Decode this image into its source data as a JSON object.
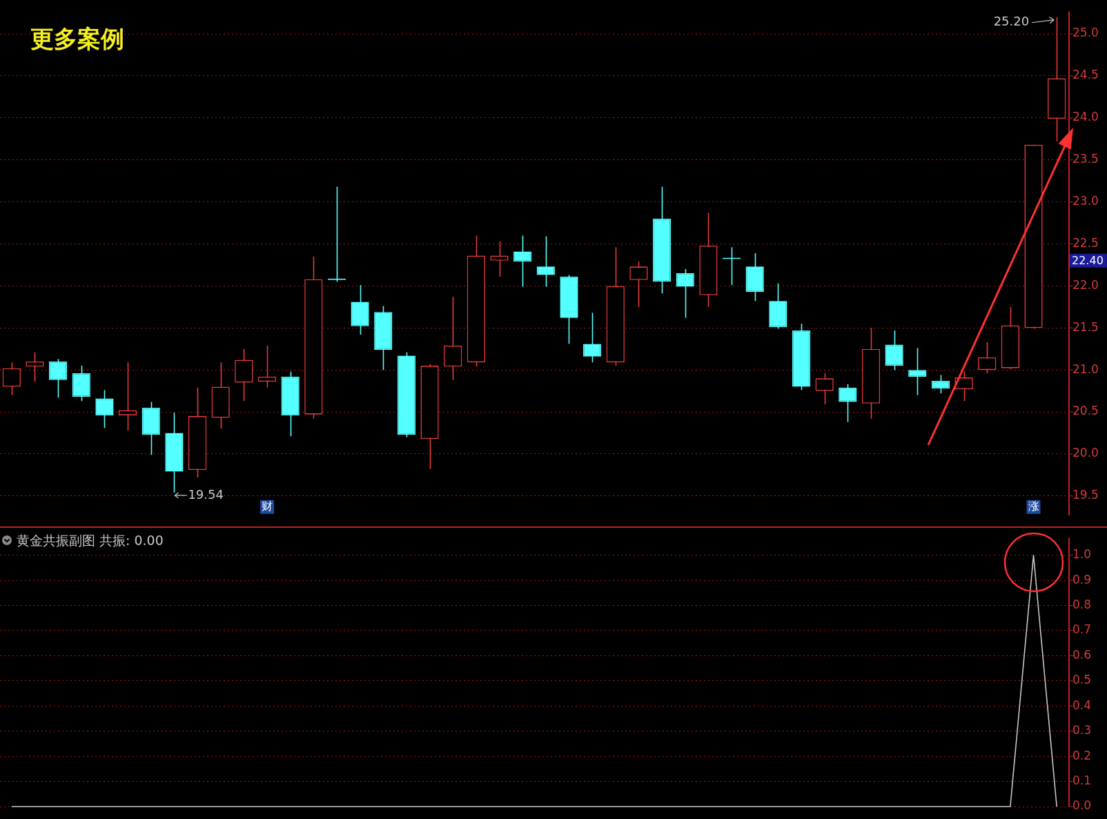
{
  "chart_data": [
    {
      "type": "candlestick",
      "title": "更多案例",
      "categories": [
        null,
        null,
        null,
        null,
        null,
        null,
        null,
        null,
        null,
        null,
        null,
        "财",
        null,
        null,
        null,
        null,
        null,
        null,
        null,
        null,
        null,
        null,
        null,
        null,
        null,
        null,
        null,
        null,
        null,
        null,
        null,
        null,
        null,
        null,
        null,
        null,
        null,
        null,
        null,
        null,
        null,
        null,
        null,
        null,
        "涨",
        null
      ],
      "ohlc": [
        [
          20.8,
          21.09,
          20.7,
          21.02
        ],
        [
          21.04,
          21.21,
          20.86,
          21.1
        ],
        [
          21.1,
          21.13,
          20.67,
          20.88
        ],
        [
          20.96,
          21.05,
          20.63,
          20.68
        ],
        [
          20.66,
          20.76,
          20.31,
          20.46
        ],
        [
          20.46,
          21.09,
          20.28,
          20.52
        ],
        [
          20.55,
          20.62,
          19.99,
          20.23
        ],
        [
          20.25,
          20.49,
          19.54,
          19.79
        ],
        [
          19.81,
          20.79,
          19.72,
          20.45
        ],
        [
          20.43,
          21.09,
          20.3,
          20.8
        ],
        [
          20.85,
          21.25,
          20.63,
          21.12
        ],
        [
          20.86,
          21.29,
          20.79,
          20.92
        ],
        [
          20.92,
          20.98,
          20.21,
          20.46
        ],
        [
          20.47,
          22.35,
          20.42,
          22.08
        ],
        [
          22.08,
          23.18,
          22.05,
          22.07
        ],
        [
          21.81,
          22.01,
          21.42,
          21.52
        ],
        [
          21.69,
          21.76,
          21.0,
          21.24
        ],
        [
          21.17,
          21.21,
          20.2,
          20.23
        ],
        [
          20.18,
          21.07,
          19.82,
          21.05
        ],
        [
          21.04,
          21.87,
          20.88,
          21.29
        ],
        [
          21.09,
          22.6,
          21.04,
          22.36
        ],
        [
          22.3,
          22.53,
          22.11,
          22.36
        ],
        [
          22.41,
          22.6,
          21.99,
          22.29
        ],
        [
          22.23,
          22.59,
          21.99,
          22.13
        ],
        [
          22.11,
          22.13,
          21.31,
          21.62
        ],
        [
          21.31,
          21.68,
          21.09,
          21.16
        ],
        [
          21.09,
          22.46,
          21.05,
          22.0
        ],
        [
          22.07,
          22.29,
          21.75,
          22.23
        ],
        [
          22.8,
          23.18,
          21.91,
          22.05
        ],
        [
          22.15,
          22.2,
          21.62,
          21.99
        ],
        [
          21.89,
          22.87,
          21.75,
          22.48
        ],
        [
          22.33,
          22.46,
          22.01,
          22.32
        ],
        [
          22.23,
          22.39,
          21.82,
          21.93
        ],
        [
          21.82,
          22.03,
          21.49,
          21.51
        ],
        [
          21.47,
          21.55,
          20.76,
          20.8
        ],
        [
          20.75,
          20.96,
          20.59,
          20.9
        ],
        [
          20.79,
          20.83,
          20.38,
          20.62
        ],
        [
          20.6,
          21.5,
          20.42,
          21.25
        ],
        [
          21.3,
          21.47,
          21.0,
          21.05
        ],
        [
          21.0,
          21.26,
          20.7,
          20.92
        ],
        [
          20.87,
          20.94,
          20.72,
          20.78
        ],
        [
          20.77,
          20.98,
          20.63,
          20.91
        ],
        [
          21.0,
          21.33,
          20.96,
          21.15
        ],
        [
          21.02,
          21.75,
          21.01,
          21.53
        ],
        [
          21.5,
          23.68,
          21.49,
          23.68
        ],
        [
          23.99,
          25.2,
          23.72,
          24.47
        ]
      ],
      "colors": [
        "#e8393a",
        "#e8393a",
        "#54ffff",
        "#54ffff",
        "#54ffff",
        "#e8393a",
        "#54ffff",
        "#54ffff",
        "#e8393a",
        "#e8393a",
        "#e8393a",
        "#e8393a",
        "#54ffff",
        "#e8393a",
        "#54ffff",
        "#54ffff",
        "#54ffff",
        "#54ffff",
        "#e8393a",
        "#e8393a",
        "#e8393a",
        "#e8393a",
        "#54ffff",
        "#54ffff",
        "#54ffff",
        "#54ffff",
        "#e8393a",
        "#e8393a",
        "#54ffff",
        "#54ffff",
        "#e8393a",
        "#54ffff",
        "#54ffff",
        "#54ffff",
        "#54ffff",
        "#e8393a",
        "#54ffff",
        "#e8393a",
        "#54ffff",
        "#54ffff",
        "#54ffff",
        "#e8393a",
        "#e8393a",
        "#e8393a",
        "#e8393a",
        "#e8393a"
      ],
      "ylim": [
        19.27,
        25.27
      ],
      "yticks": [
        {
          "value": 19.5,
          "label": "19.5"
        },
        {
          "value": 20,
          "label": "20.0"
        },
        {
          "value": 20.5,
          "label": "20.5"
        },
        {
          "value": 21,
          "label": "21.0"
        },
        {
          "value": 21.5,
          "label": "21.5"
        },
        {
          "value": 22,
          "label": "22.0"
        },
        {
          "value": 22.5,
          "label": "22.5"
        },
        {
          "value": 23,
          "label": "23.0"
        },
        {
          "value": 23.5,
          "label": "23.5"
        },
        {
          "value": 24,
          "label": "24.0"
        },
        {
          "value": 24.5,
          "label": "24.5"
        },
        {
          "value": 25,
          "label": "25.0"
        }
      ],
      "annotations": [
        "25.20",
        "19.54",
        "22.40"
      ],
      "grid": "y",
      "legend": false
    },
    {
      "type": "line",
      "title": "黄金共振副图 共振: 0.00",
      "categories": [
        null,
        null,
        null,
        null,
        null,
        null,
        null,
        null,
        null,
        null,
        null,
        null,
        null,
        null,
        null,
        null,
        null,
        null,
        null,
        null,
        null,
        null,
        null,
        null,
        null,
        null,
        null,
        null,
        null,
        null,
        null,
        null,
        null,
        null,
        null,
        null,
        null,
        null,
        null,
        null,
        null,
        null,
        null,
        null,
        null,
        null
      ],
      "series": [
        {
          "color": "#c8c8c8",
          "values": [
            0,
            0,
            0,
            0,
            0,
            0,
            0,
            0,
            0,
            0,
            0,
            0,
            0,
            0,
            0,
            0,
            0,
            0,
            0,
            0,
            0,
            0,
            0,
            0,
            0,
            0,
            0,
            0,
            0,
            0,
            0,
            0,
            0,
            0,
            0,
            0,
            0,
            0,
            0,
            0,
            0,
            0,
            0,
            0,
            1,
            0
          ]
        }
      ],
      "ylim": [
        0,
        1.07
      ],
      "yticks": [
        {
          "value": 0,
          "label": "0.0"
        },
        {
          "value": 0.1,
          "label": "0.1"
        },
        {
          "value": 0.2,
          "label": "0.2"
        },
        {
          "value": 0.3,
          "label": "0.3"
        },
        {
          "value": 0.4,
          "label": "0.4"
        },
        {
          "value": 0.5,
          "label": "0.5"
        },
        {
          "value": 0.6,
          "label": "0.6"
        },
        {
          "value": 0.7,
          "label": "0.7"
        },
        {
          "value": 0.8,
          "label": "0.8"
        },
        {
          "value": 0.9,
          "label": "0.9"
        },
        {
          "value": 1,
          "label": "1.0"
        }
      ],
      "grid": "y",
      "legend": false,
      "marker": "none",
      "tick_labels": "y"
    }
  ]
}
